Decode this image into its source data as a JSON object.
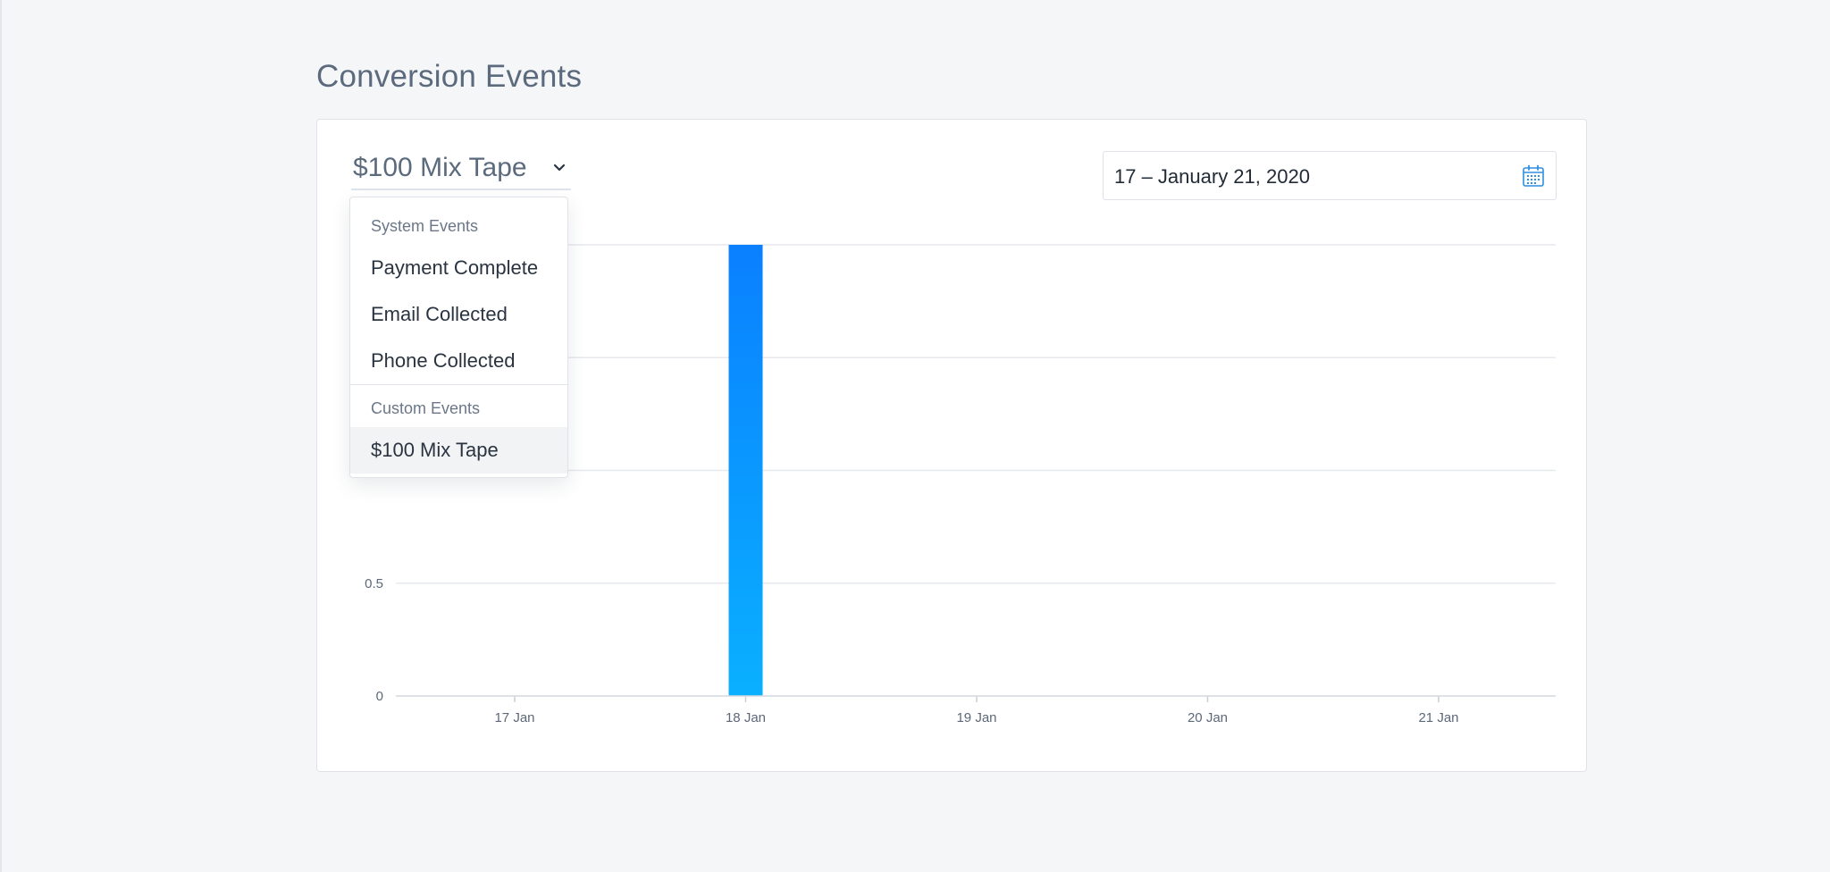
{
  "page": {
    "title": "Conversion Events"
  },
  "event_selector": {
    "selected": "$100 Mix Tape"
  },
  "date_range": {
    "value": "17 – January 21, 2020"
  },
  "dropdown": {
    "groups": [
      {
        "label": "System Events",
        "items": [
          "Payment Complete",
          "Email Collected",
          "Phone Collected"
        ]
      },
      {
        "label": "Custom Events",
        "items": [
          "$100 Mix Tape"
        ]
      }
    ],
    "selected_item": "$100 Mix Tape"
  },
  "colors": {
    "bar_top": "#0a80ff",
    "bar_bottom": "#0ab0ff",
    "grid": "#e6e9ee",
    "calendar_icon": "#2f8fe0"
  },
  "chart_data": {
    "type": "bar",
    "categories": [
      "17 Jan",
      "18 Jan",
      "19 Jan",
      "20 Jan",
      "21 Jan"
    ],
    "values": [
      0,
      2,
      0,
      0,
      0
    ],
    "ylim": [
      0,
      2
    ],
    "y_ticks": [
      0,
      0.5,
      1,
      1.5,
      2
    ],
    "y_tick_labels_visible": [
      "0",
      "0.5"
    ],
    "grid": true,
    "title": "",
    "xlabel": "",
    "ylabel": ""
  }
}
